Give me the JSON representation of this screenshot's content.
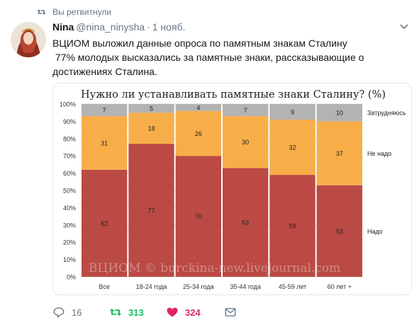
{
  "retweet_context": {
    "text": "Вы ретвитнули"
  },
  "tweet": {
    "name": "Nina",
    "handle": "@nina_ninysha",
    "separator": "·",
    "time": "1 нояб.",
    "text_lines": [
      "ВЦИОМ выложил данные опроса по памятным знакам Сталину",
      " 77% молодых высказались за памятные знаки, рассказывающие о",
      "достижениях Сталина."
    ]
  },
  "actions": {
    "replies": "16",
    "retweets": "313",
    "likes": "324"
  },
  "colors": {
    "accent_retweet": "#17bf63",
    "accent_like": "#e0245e",
    "muted": "#657786",
    "nado": "#bb4a44",
    "ne_nado": "#f8ae48",
    "zatrudnyayus": "#b3b3b3"
  },
  "icons": [
    "retweet-icon",
    "chevron-down-icon",
    "reply-icon",
    "heart-icon",
    "envelope-icon"
  ],
  "watermark": "ВЦИОМ © burckina-new.livejournal.com",
  "chart_data": {
    "type": "bar",
    "stacked": true,
    "title": "Нужно ли устанавливать памятные знаки Сталину? (%)",
    "categories": [
      "Все",
      "18-24 года",
      "25-34 года",
      "35-44 года",
      "45-59 лет",
      "60 лет +"
    ],
    "series": [
      {
        "name": "Надо",
        "values": [
          62,
          77,
          70,
          63,
          59,
          53
        ],
        "color": "#bb4a44"
      },
      {
        "name": "Не надо",
        "values": [
          31,
          18,
          26,
          30,
          32,
          37
        ],
        "color": "#f8ae48"
      },
      {
        "name": "Затрудняюсь",
        "values": [
          7,
          5,
          4,
          7,
          9,
          10
        ],
        "color": "#b3b3b3"
      }
    ],
    "y_ticks": [
      "0%",
      "10%",
      "20%",
      "30%",
      "40%",
      "50%",
      "60%",
      "70%",
      "80%",
      "90%",
      "100%"
    ],
    "ylim": [
      0,
      100
    ],
    "legend_placement": "right"
  }
}
